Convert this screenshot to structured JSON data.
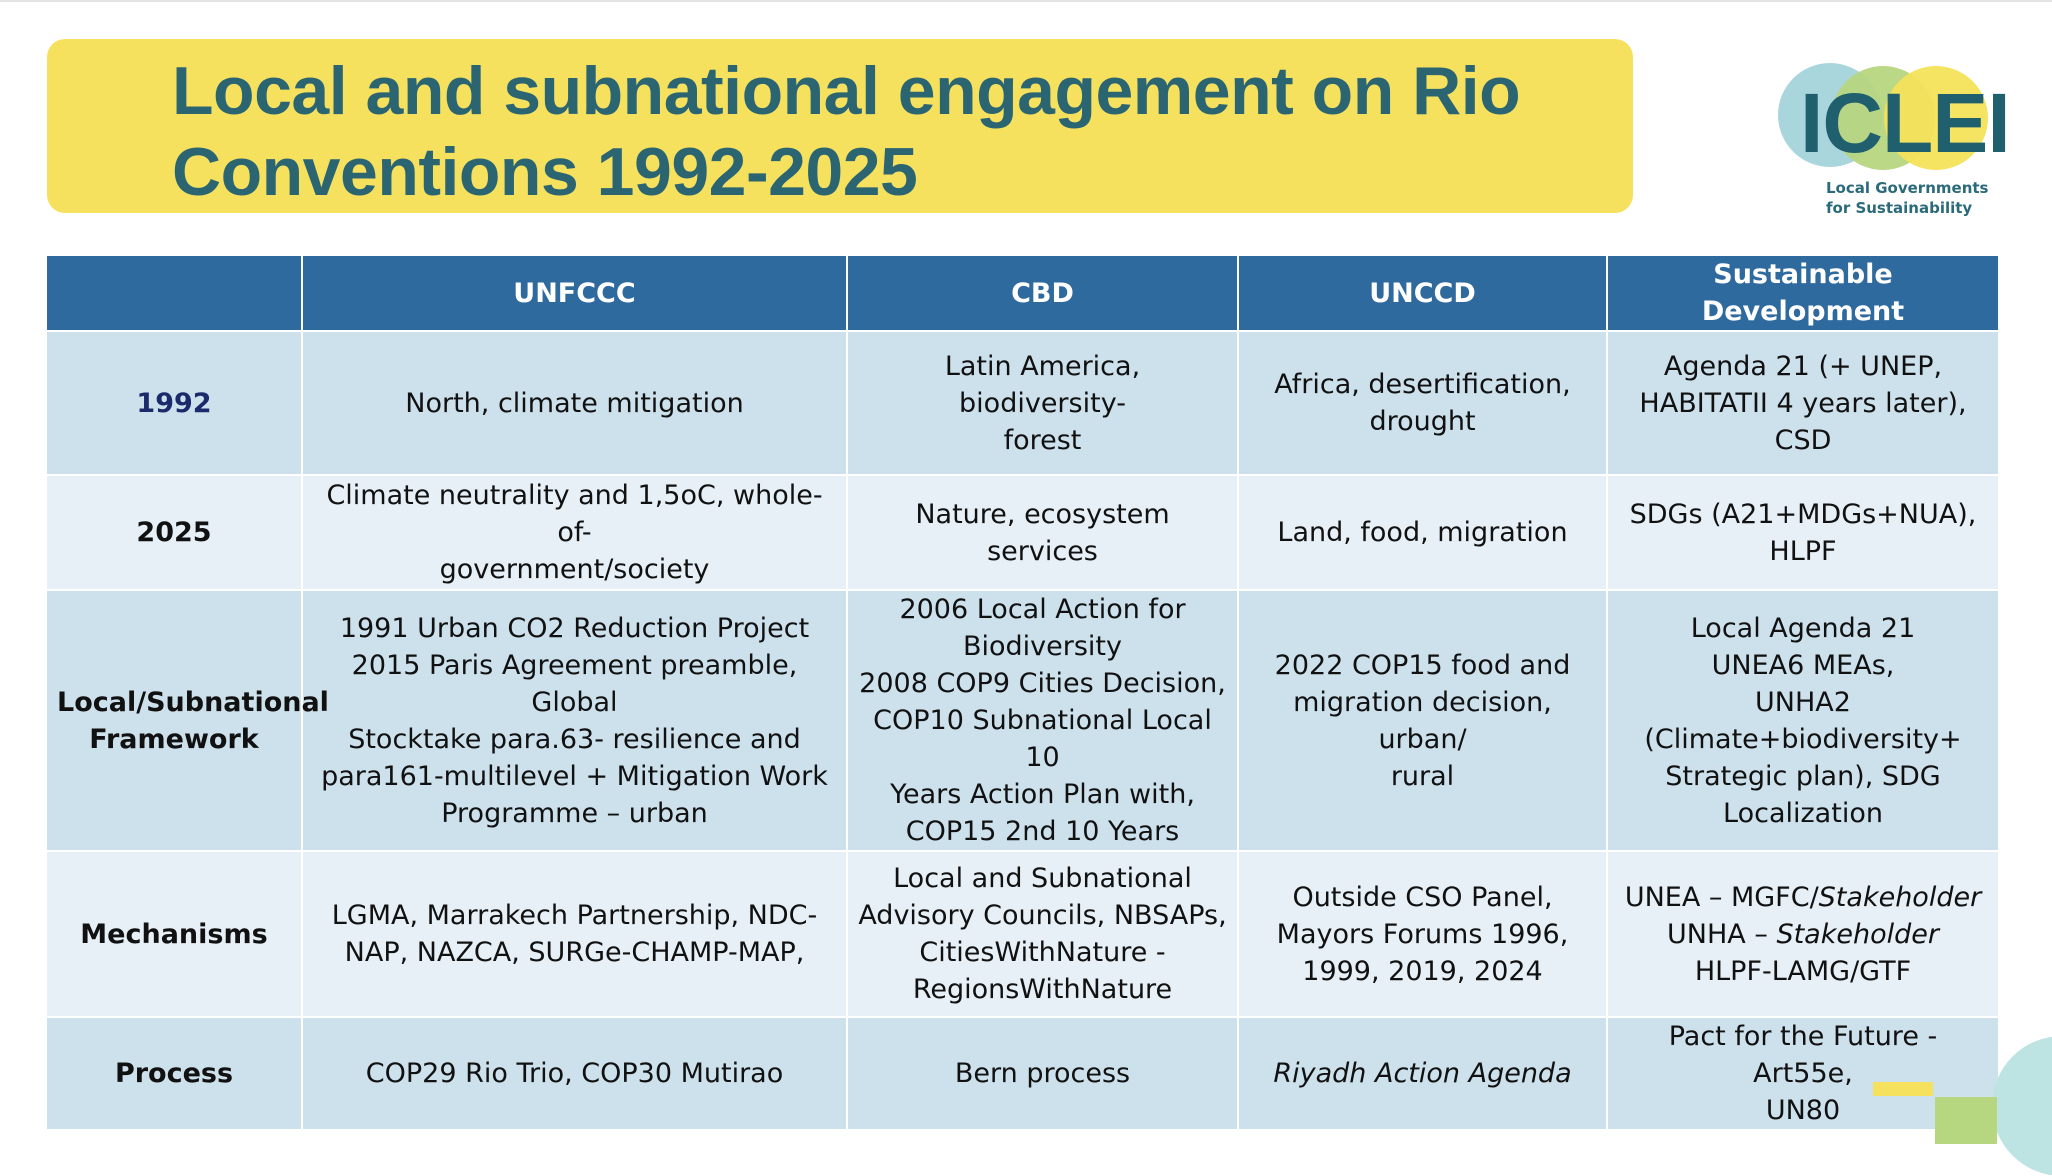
{
  "title": "Local and subnational engagement on Rio Conventions 1992-2025",
  "logo": {
    "wordmark": "ICLEI",
    "tagline_line1": "Local Governments",
    "tagline_line2": "for Sustainability",
    "colors": {
      "teal_circle": "#a9d6dc",
      "green_circle": "#b6d680",
      "yellow_circle": "#f4e15a",
      "text": "#1f5f6e"
    }
  },
  "colors": {
    "title_band": "#f6e15f",
    "title_text": "#2c6572",
    "header": "#2f6a9e",
    "row_dark": "#cde1ec",
    "row_light": "#e7f0f7"
  },
  "table": {
    "headers": [
      "",
      "UNFCCC",
      "CBD",
      "UNCCD",
      "Sustainable Development"
    ],
    "rows": [
      {
        "label": "1992",
        "cells": [
          [
            "North, climate mitigation"
          ],
          [
            "Latin America, biodiversity-",
            "forest"
          ],
          [
            "Africa, desertification,",
            "drought"
          ],
          [
            "Agenda 21 (+ UNEP,",
            "HABITATII 4 years later), CSD"
          ]
        ]
      },
      {
        "label": "2025",
        "cells": [
          [
            "Climate neutrality and 1,5oC, whole-of-",
            "government/society"
          ],
          [
            "Nature, ecosystem services"
          ],
          [
            "Land, food, migration"
          ],
          [
            "SDGs (A21+MDGs+NUA),",
            "HLPF"
          ]
        ]
      },
      {
        "label_line1": "Local/Subnational",
        "label_line2": "Framework",
        "cells": [
          [
            "1991 Urban CO2 Reduction Project",
            "2015 Paris Agreement preamble, Global",
            "Stocktake para.63- resilience and",
            "para161-multilevel + Mitigation Work",
            "Programme – urban"
          ],
          [
            "2006 Local Action for",
            "Biodiversity",
            "2008 COP9 Cities Decision,",
            "COP10 Subnational Local 10",
            "Years Action Plan with,",
            "COP15 2nd 10 Years"
          ],
          [
            "2022 COP15 food and",
            "migration decision, urban/",
            "rural"
          ],
          [
            "Local Agenda 21",
            "UNEA6 MEAs,",
            "UNHA2",
            "(Climate+biodiversity+",
            "Strategic plan), SDG",
            "Localization"
          ]
        ]
      },
      {
        "label": "Mechanisms",
        "cells": [
          [
            "LGMA, Marrakech Partnership, NDC-",
            "NAP, NAZCA, SURGe-CHAMP-MAP,"
          ],
          [
            "Local and Subnational",
            "Advisory Councils, NBSAPs,",
            "CitiesWithNature -",
            "RegionsWithNature"
          ],
          [
            "Outside CSO Panel,",
            "Mayors Forums 1996,",
            "1999, 2019, 2024"
          ],
          {
            "line1_plain": "UNEA – MGFC/",
            "line1_italic": "Stakeholder",
            "line2_plain": "UNHA – ",
            "line2_italic": "Stakeholder",
            "line3": "HLPF-LAMG/GTF"
          }
        ]
      },
      {
        "label": "Process",
        "cells": [
          [
            "COP29 Rio Trio, COP30 Mutirao"
          ],
          [
            "Bern process"
          ],
          [
            "Riyadh Action Agenda"
          ],
          [
            "Pact for the Future - Art55e,",
            "UN80"
          ]
        ]
      }
    ]
  }
}
